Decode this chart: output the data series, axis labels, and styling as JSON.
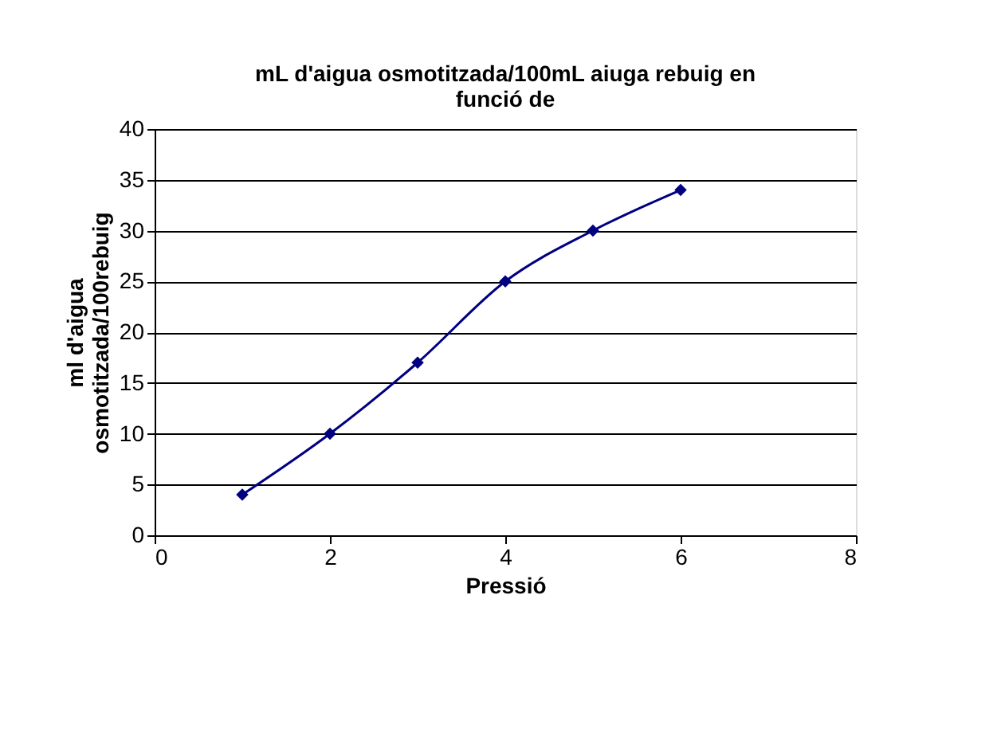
{
  "chart_data": {
    "type": "line",
    "title": "mL d'aigua osmotitzada/100mL aiuga rebuig en funció de",
    "xlabel": "Pressió",
    "ylabel": "ml d'aigua osmotitzada/100rebuig",
    "x": [
      1,
      2,
      3,
      4,
      5,
      6
    ],
    "series": [
      {
        "color": "#000080",
        "values": [
          4,
          10,
          17,
          25,
          30,
          34
        ]
      }
    ],
    "xlim": [
      0,
      8
    ],
    "xticks": [
      0,
      2,
      4,
      6,
      8
    ],
    "ylim": [
      0,
      40
    ],
    "yticks": [
      0,
      5,
      10,
      15,
      20,
      25,
      30,
      35,
      40
    ],
    "grid": "y",
    "legend": false,
    "marker": "diamond",
    "line_style": "solid"
  }
}
